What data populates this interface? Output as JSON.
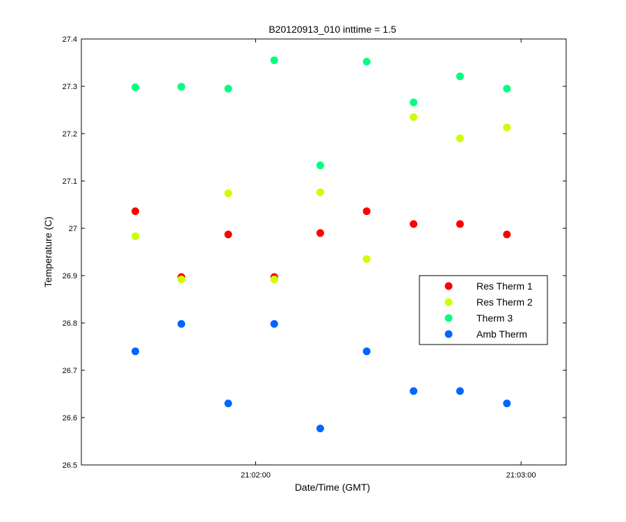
{
  "chart_data": {
    "type": "scatter",
    "title": "B20120913_010 inttime = 1.5",
    "xlabel": "Date/Time (GMT)",
    "ylabel": "Temperature (C)",
    "xlim": [
      "21:01:20.6",
      "21:03:10.2"
    ],
    "ylim": [
      26.5,
      27.4
    ],
    "x_ticks": [
      "21:02:00",
      "21:03:00"
    ],
    "y_ticks": [
      "26.5",
      "26.6",
      "26.7",
      "26.8",
      "26.9",
      "27",
      "27.1",
      "27.2",
      "27.3",
      "27.4"
    ],
    "y_tick_values": [
      26.5,
      26.6,
      26.7,
      26.8,
      26.9,
      27.0,
      27.1,
      27.2,
      27.3,
      27.4
    ],
    "grid": false,
    "legend_position": "right",
    "x": [
      "21:01:32.8",
      "21:01:43.2",
      "21:01:53.8",
      "21:02:04.2",
      "21:02:14.6",
      "21:02:25.1",
      "21:02:35.7",
      "21:02:46.2",
      "21:02:56.8"
    ],
    "series": [
      {
        "name": "Res Therm 1",
        "color": "#ff0000",
        "values": [
          27.036,
          26.897,
          26.987,
          26.897,
          26.99,
          27.036,
          27.009,
          27.009,
          26.987
        ]
      },
      {
        "name": "Res Therm 2",
        "color": "#ccff00",
        "values": [
          26.983,
          26.892,
          27.074,
          26.892,
          27.076,
          26.935,
          27.235,
          27.19,
          27.213
        ]
      },
      {
        "name": "Therm 3",
        "color": "#00ff80",
        "values": [
          27.298,
          27.299,
          27.295,
          27.355,
          27.133,
          27.352,
          27.266,
          27.321,
          27.295
        ]
      },
      {
        "name": "Amb Therm",
        "color": "#0066ff",
        "values": [
          26.74,
          26.798,
          26.63,
          26.798,
          26.577,
          26.74,
          26.656,
          26.656,
          26.63
        ]
      }
    ]
  }
}
